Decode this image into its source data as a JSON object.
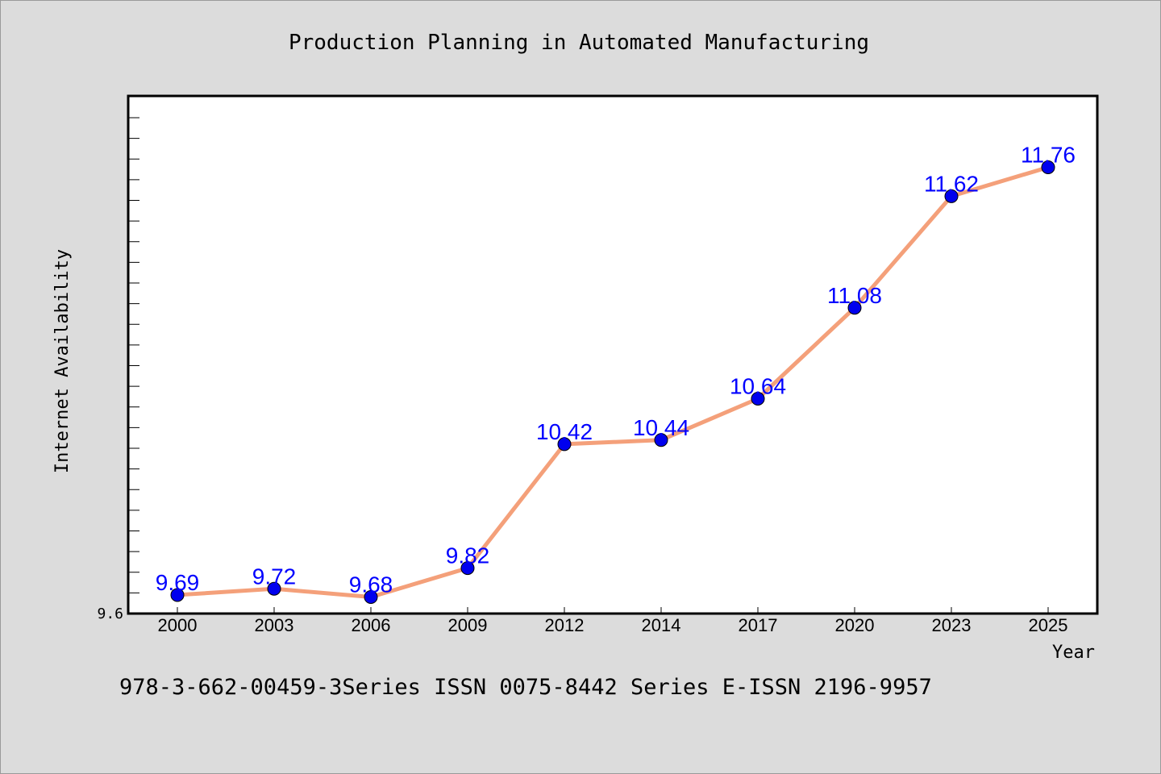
{
  "chart_data": {
    "type": "line",
    "title": "Production Planning in Automated Manufacturing",
    "xlabel": "Year",
    "ylabel": "Internet Availability",
    "categories": [
      "2000",
      "2003",
      "2006",
      "2009",
      "2012",
      "2014",
      "2017",
      "2020",
      "2023",
      "2025"
    ],
    "series": [
      {
        "values": [
          9.69,
          9.72,
          9.68,
          9.82,
          10.42,
          10.44,
          10.64,
          11.08,
          11.62,
          11.76
        ],
        "labels": [
          "9.69",
          "9.72",
          "9.68",
          "9.82",
          "10.42",
          "10.44",
          "10.64",
          "11.08",
          "11.62",
          "11.76"
        ]
      }
    ],
    "ylim": [
      9.6,
      12.0
    ],
    "yticks": [
      "9.6"
    ],
    "grid": false,
    "legend": "none",
    "colors": {
      "line": "#f4a07a",
      "marker": "#0000ee",
      "data_label": "#0000ff",
      "background": "#dcdcdc",
      "plot_bg": "#ffffff"
    }
  },
  "footer": "978-3-662-00459-3Series ISSN 0075-8442 Series E-ISSN 2196-9957"
}
